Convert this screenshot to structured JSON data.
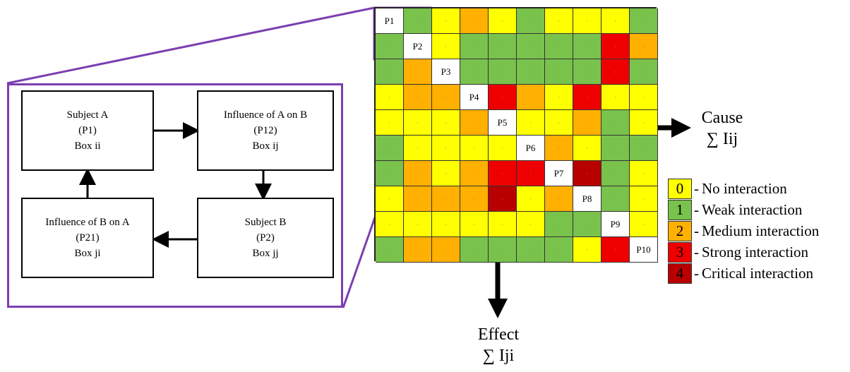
{
  "colors": {
    "level_0": "#ffff00",
    "level_1": "#79c24c",
    "level_2": "#ffb000",
    "level_3": "#ee0000",
    "level_4": "#b80000",
    "frame": "#7b3fb0"
  },
  "boxes": {
    "subject_a": [
      "Subject A",
      "(P1)",
      "Box ii"
    ],
    "influence_ab": [
      "Influence of A on B",
      "(P12)",
      "Box ij"
    ],
    "influence_ba": [
      "Influence of B on A",
      "(P21)",
      "Box ji"
    ],
    "subject_b": [
      "Subject B",
      "(P2)",
      "Box jj"
    ]
  },
  "matrix": {
    "diagonal_labels": [
      "P1",
      "P2",
      "P3",
      "P4",
      "P5",
      "P6",
      "P7",
      "P8",
      "P9",
      "P10"
    ],
    "off_diagonal_mark": "·",
    "levels": [
      [
        -1,
        1,
        0,
        2,
        0,
        1,
        0,
        0,
        0,
        1
      ],
      [
        1,
        -1,
        0,
        1,
        1,
        1,
        1,
        1,
        3,
        2
      ],
      [
        1,
        2,
        -1,
        1,
        1,
        1,
        1,
        1,
        3,
        1
      ],
      [
        0,
        2,
        2,
        -1,
        3,
        2,
        0,
        3,
        0,
        0
      ],
      [
        0,
        0,
        0,
        2,
        -1,
        0,
        0,
        2,
        1,
        0
      ],
      [
        1,
        0,
        0,
        0,
        0,
        -1,
        2,
        0,
        1,
        1
      ],
      [
        1,
        2,
        0,
        2,
        3,
        3,
        -1,
        4,
        1,
        0
      ],
      [
        0,
        2,
        2,
        2,
        4,
        0,
        2,
        -1,
        1,
        0
      ],
      [
        0,
        0,
        0,
        0,
        0,
        0,
        1,
        1,
        -1,
        0
      ],
      [
        1,
        2,
        2,
        1,
        1,
        1,
        1,
        0,
        3,
        -1
      ]
    ]
  },
  "cause": {
    "title": "Cause",
    "formula": "∑ Iij"
  },
  "effect": {
    "title": "Effect",
    "formula": "∑ Iji"
  },
  "legend": [
    {
      "value": "0",
      "label": "No interaction"
    },
    {
      "value": "1",
      "label": "Weak interaction"
    },
    {
      "value": "2",
      "label": "Medium interaction"
    },
    {
      "value": "3",
      "label": "Strong interaction"
    },
    {
      "value": "4",
      "label": "Critical interaction"
    }
  ]
}
